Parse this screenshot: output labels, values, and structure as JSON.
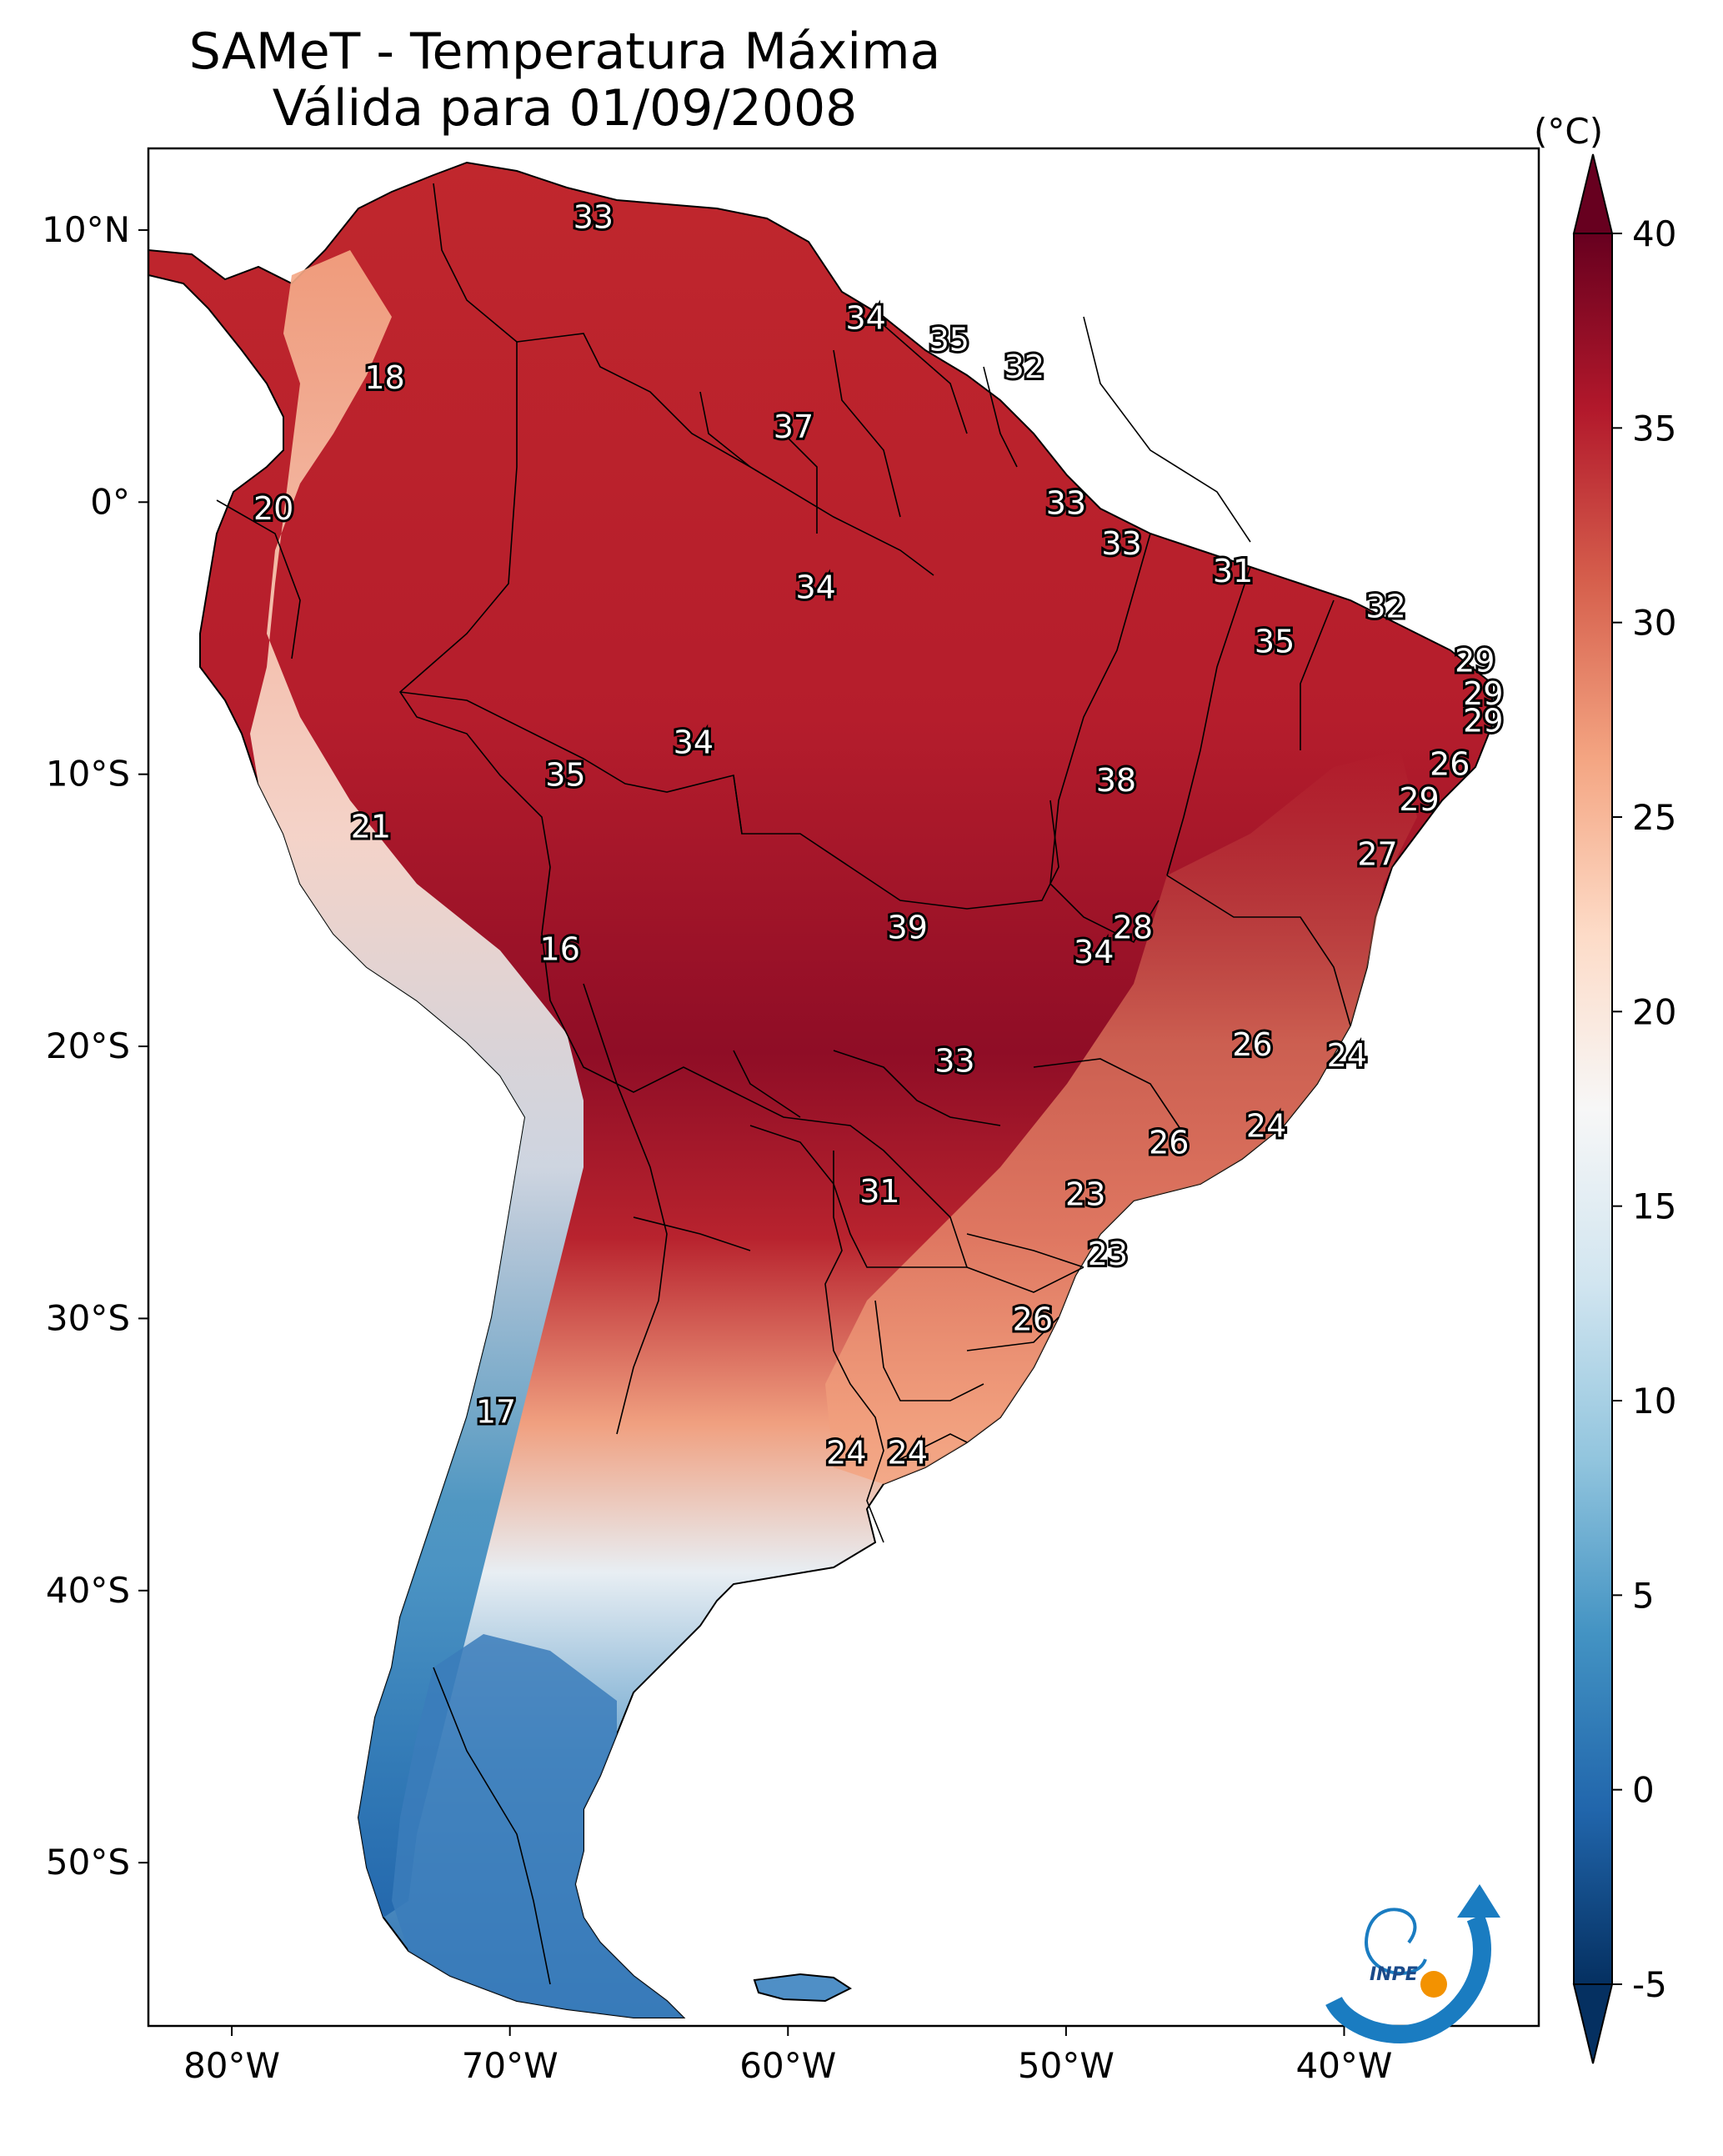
{
  "title": {
    "line1": "SAMeT - Temperatura Máxima",
    "line2": "Válida para 01/09/2008"
  },
  "map": {
    "lon_range": [
      -83,
      -33
    ],
    "lat_range": [
      -56,
      13
    ],
    "lat_ticks": [
      {
        "value": 10,
        "label": "10°N"
      },
      {
        "value": 0,
        "label": "0°"
      },
      {
        "value": -10,
        "label": "10°S"
      },
      {
        "value": -20,
        "label": "20°S"
      },
      {
        "value": -30,
        "label": "30°S"
      },
      {
        "value": -40,
        "label": "40°S"
      },
      {
        "value": -50,
        "label": "50°S"
      }
    ],
    "lon_ticks": [
      {
        "value": -80,
        "label": "80°W"
      },
      {
        "value": -70,
        "label": "70°W"
      },
      {
        "value": -60,
        "label": "60°W"
      },
      {
        "value": -50,
        "label": "50°W"
      },
      {
        "value": -40,
        "label": "40°W"
      }
    ],
    "station_labels": [
      {
        "lon": -67.0,
        "lat": 10.5,
        "value": "33"
      },
      {
        "lon": -57.2,
        "lat": 6.8,
        "value": "34"
      },
      {
        "lon": -54.2,
        "lat": 6.0,
        "value": "35"
      },
      {
        "lon": -51.5,
        "lat": 5.0,
        "value": "32"
      },
      {
        "lon": -74.5,
        "lat": 4.6,
        "value": "18"
      },
      {
        "lon": -59.8,
        "lat": 2.8,
        "value": "37"
      },
      {
        "lon": -50.0,
        "lat": 0.0,
        "value": "33"
      },
      {
        "lon": -78.5,
        "lat": -0.2,
        "value": "20"
      },
      {
        "lon": -48.0,
        "lat": -1.5,
        "value": "33"
      },
      {
        "lon": -44.0,
        "lat": -2.5,
        "value": "31"
      },
      {
        "lon": -59.0,
        "lat": -3.1,
        "value": "34"
      },
      {
        "lon": -38.5,
        "lat": -3.8,
        "value": "32"
      },
      {
        "lon": -42.5,
        "lat": -5.1,
        "value": "35"
      },
      {
        "lon": -35.3,
        "lat": -5.8,
        "value": "29"
      },
      {
        "lon": -35.0,
        "lat": -7.0,
        "value": "29"
      },
      {
        "lon": -35.0,
        "lat": -8.0,
        "value": "29"
      },
      {
        "lon": -63.4,
        "lat": -8.8,
        "value": "34"
      },
      {
        "lon": -36.2,
        "lat": -9.6,
        "value": "26"
      },
      {
        "lon": -68.0,
        "lat": -10.0,
        "value": "35"
      },
      {
        "lon": -48.2,
        "lat": -10.2,
        "value": "38"
      },
      {
        "lon": -37.3,
        "lat": -10.9,
        "value": "29"
      },
      {
        "lon": -75.0,
        "lat": -11.9,
        "value": "21"
      },
      {
        "lon": -38.8,
        "lat": -12.9,
        "value": "27"
      },
      {
        "lon": -55.7,
        "lat": -15.6,
        "value": "39"
      },
      {
        "lon": -47.6,
        "lat": -15.6,
        "value": "28"
      },
      {
        "lon": -49.0,
        "lat": -16.5,
        "value": "34"
      },
      {
        "lon": -68.2,
        "lat": -16.4,
        "value": "16"
      },
      {
        "lon": -43.3,
        "lat": -19.9,
        "value": "26"
      },
      {
        "lon": -39.9,
        "lat": -20.3,
        "value": "24"
      },
      {
        "lon": -54.0,
        "lat": -20.5,
        "value": "33"
      },
      {
        "lon": -42.8,
        "lat": -22.9,
        "value": "24"
      },
      {
        "lon": -46.3,
        "lat": -23.5,
        "value": "26"
      },
      {
        "lon": -56.7,
        "lat": -25.3,
        "value": "31"
      },
      {
        "lon": -49.3,
        "lat": -25.4,
        "value": "23"
      },
      {
        "lon": -48.5,
        "lat": -27.6,
        "value": "23"
      },
      {
        "lon": -51.2,
        "lat": -30.0,
        "value": "26"
      },
      {
        "lon": -70.5,
        "lat": -33.4,
        "value": "17"
      },
      {
        "lon": -57.9,
        "lat": -34.9,
        "value": "24"
      },
      {
        "lon": -55.7,
        "lat": -34.9,
        "value": "24"
      }
    ]
  },
  "colorbar": {
    "unit": "(°C)",
    "min": -5,
    "max": 40,
    "ticks": [
      {
        "value": 40,
        "label": "40"
      },
      {
        "value": 35,
        "label": "35"
      },
      {
        "value": 30,
        "label": "30"
      },
      {
        "value": 25,
        "label": "25"
      },
      {
        "value": 20,
        "label": "20"
      },
      {
        "value": 15,
        "label": "15"
      },
      {
        "value": 10,
        "label": "10"
      },
      {
        "value": 5,
        "label": "5"
      },
      {
        "value": 0,
        "label": "0"
      },
      {
        "value": -5,
        "label": "-5"
      }
    ],
    "colors": [
      "#053061",
      "#2166ac",
      "#4393c3",
      "#92c5de",
      "#d1e5f0",
      "#f7f7f7",
      "#fddbc7",
      "#f4a582",
      "#d6604d",
      "#b2182b",
      "#67001f"
    ]
  },
  "logo": {
    "text": "INPE",
    "colors": {
      "blue": "#1a7cc1",
      "orange": "#f39200"
    }
  }
}
